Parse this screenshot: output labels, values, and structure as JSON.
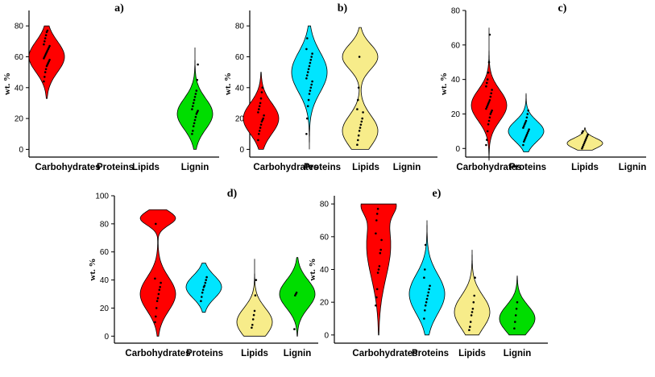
{
  "figure": {
    "palette": {
      "Carbohydrates": "#ff0000",
      "Proteins": "#00e5ff",
      "Lipids": "#f7ec8a",
      "Lignin": "#00dd00"
    }
  },
  "chart_data": [
    {
      "type": "violin",
      "panel_label": "a)",
      "ylabel": "wt. %",
      "ylim": [
        -5,
        90
      ],
      "yticks": [
        0,
        20,
        40,
        60,
        80
      ],
      "categories": [
        "Carbohydrates",
        "Proteins",
        "Lipids",
        "Lignin"
      ],
      "series": [
        {
          "name": "Carbohydrates",
          "min": 33,
          "max": 80,
          "modes": [
            [
              60,
              10
            ]
          ],
          "points": [
            44,
            47,
            50,
            52,
            54,
            55,
            56,
            57,
            58,
            59,
            60,
            61,
            62,
            63,
            64,
            65,
            66,
            67,
            68,
            70,
            72,
            74,
            76,
            77
          ]
        },
        {
          "name": "Proteins",
          "min": null,
          "max": null,
          "modes": [],
          "points": []
        },
        {
          "name": "Lipids",
          "min": null,
          "max": null,
          "modes": [],
          "points": []
        },
        {
          "name": "Lignin",
          "min": 0,
          "max": 66,
          "modes": [
            [
              23,
              10
            ]
          ],
          "points": [
            10,
            12,
            15,
            17,
            19,
            21,
            23,
            24,
            25,
            26,
            28,
            30,
            32,
            34,
            36,
            38,
            45,
            55
          ]
        }
      ]
    },
    {
      "type": "violin",
      "panel_label": "b)",
      "ylabel": "wt. %",
      "ylim": [
        -5,
        90
      ],
      "yticks": [
        0,
        20,
        40,
        60,
        80
      ],
      "categories": [
        "Carbohydrates",
        "Proteins",
        "Lipids",
        "Lignin"
      ],
      "series": [
        {
          "name": "Carbohydrates",
          "min": 0,
          "max": 50,
          "modes": [
            [
              20,
              10
            ]
          ],
          "points": [
            6,
            10,
            12,
            14,
            16,
            18,
            19,
            20,
            22,
            24,
            26,
            28,
            30,
            33,
            37,
            40
          ]
        },
        {
          "name": "Proteins",
          "min": 0,
          "max": 80,
          "modes": [
            [
              50,
              13
            ]
          ],
          "points": [
            10,
            20,
            28,
            32,
            36,
            38,
            40,
            42,
            44,
            46,
            48,
            50,
            52,
            54,
            56,
            58,
            60,
            62,
            65,
            72
          ]
        },
        {
          "name": "Lipids",
          "min": 0,
          "max": 79,
          "modes": [
            [
              12,
              10
            ],
            [
              60,
              8
            ]
          ],
          "points": [
            3,
            6,
            9,
            12,
            14,
            16,
            18,
            20,
            24,
            26,
            32,
            40,
            60
          ]
        },
        {
          "name": "Lignin",
          "min": null,
          "max": null,
          "modes": [],
          "points": []
        }
      ]
    },
    {
      "type": "violin",
      "panel_label": "c)",
      "ylabel": "wt. %",
      "ylim": [
        -5,
        80
      ],
      "yticks": [
        0,
        20,
        40,
        60,
        80
      ],
      "categories": [
        "Carbohydrates",
        "Proteins",
        "Lipids",
        "Lignin"
      ],
      "series": [
        {
          "name": "Carbohydrates",
          "min": -7,
          "max": 70,
          "modes": [
            [
              25,
              9
            ]
          ],
          "points": [
            2,
            5,
            10,
            14,
            16,
            18,
            20,
            21,
            22,
            23,
            24,
            25,
            26,
            27,
            28,
            30,
            32,
            34,
            36,
            38,
            40,
            44,
            50,
            66
          ]
        },
        {
          "name": "Proteins",
          "min": -2,
          "max": 32,
          "modes": [
            [
              10,
              6
            ]
          ],
          "points": [
            2,
            4,
            5,
            6,
            7,
            8,
            9,
            10,
            11,
            12,
            13,
            14,
            15,
            16,
            18,
            20,
            22
          ]
        },
        {
          "name": "Lipids",
          "min": -1,
          "max": 12,
          "modes": [
            [
              3,
              3
            ]
          ],
          "points": [
            0,
            1,
            2,
            3,
            4,
            5,
            6,
            7,
            8,
            9,
            10
          ]
        },
        {
          "name": "Lignin",
          "min": null,
          "max": null,
          "modes": [],
          "points": []
        }
      ]
    },
    {
      "type": "violin",
      "panel_label": "d)",
      "ylabel": "wt. %",
      "ylim": [
        -5,
        100
      ],
      "yticks": [
        0,
        20,
        40,
        60,
        80,
        100
      ],
      "categories": [
        "Carbohydrates",
        "Proteins",
        "Lipids",
        "Lignin"
      ],
      "series": [
        {
          "name": "Carbohydrates",
          "min": 0,
          "max": 90,
          "modes": [
            [
              30,
              12
            ],
            [
              84,
              5
            ]
          ],
          "points": [
            10,
            14,
            20,
            25,
            27,
            30,
            33,
            35,
            38,
            41,
            80
          ]
        },
        {
          "name": "Proteins",
          "min": 17,
          "max": 52,
          "modes": [
            [
              35,
              8
            ]
          ],
          "points": [
            25,
            28,
            31,
            33,
            35,
            36,
            38,
            40,
            42
          ]
        },
        {
          "name": "Lipids",
          "min": 0,
          "max": 55,
          "modes": [
            [
              10,
              10
            ]
          ],
          "points": [
            6,
            8,
            12,
            15,
            18,
            29,
            40
          ]
        },
        {
          "name": "Lignin",
          "min": 0,
          "max": 56,
          "modes": [
            [
              30,
              10
            ]
          ],
          "points": [
            5,
            29,
            30,
            31
          ]
        }
      ]
    },
    {
      "type": "violin",
      "panel_label": "e)",
      "ylabel": "wt. %",
      "ylim": [
        -5,
        85
      ],
      "yticks": [
        0,
        20,
        40,
        60,
        80
      ],
      "categories": [
        "Carbohydrates",
        "Proteins",
        "Lipids",
        "Lignin"
      ],
      "series": [
        {
          "name": "Carbohydrates",
          "min": 0,
          "max": 80,
          "modes": [
            [
              55,
              20
            ],
            [
              80,
              6
            ]
          ],
          "points": [
            18,
            23,
            28,
            38,
            40,
            42,
            50,
            52,
            58,
            62,
            70,
            74,
            77
          ]
        },
        {
          "name": "Proteins",
          "min": 0,
          "max": 70,
          "modes": [
            [
              25,
              12
            ]
          ],
          "points": [
            10,
            15,
            18,
            20,
            22,
            24,
            26,
            28,
            30,
            35,
            40,
            55
          ]
        },
        {
          "name": "Lipids",
          "min": 0,
          "max": 52,
          "modes": [
            [
              14,
              10
            ]
          ],
          "points": [
            3,
            5,
            8,
            12,
            14,
            16,
            20,
            24,
            35
          ]
        },
        {
          "name": "Lignin",
          "min": 0,
          "max": 36,
          "modes": [
            [
              10,
              8
            ]
          ],
          "points": [
            4,
            8,
            12,
            16,
            20
          ]
        }
      ]
    }
  ]
}
